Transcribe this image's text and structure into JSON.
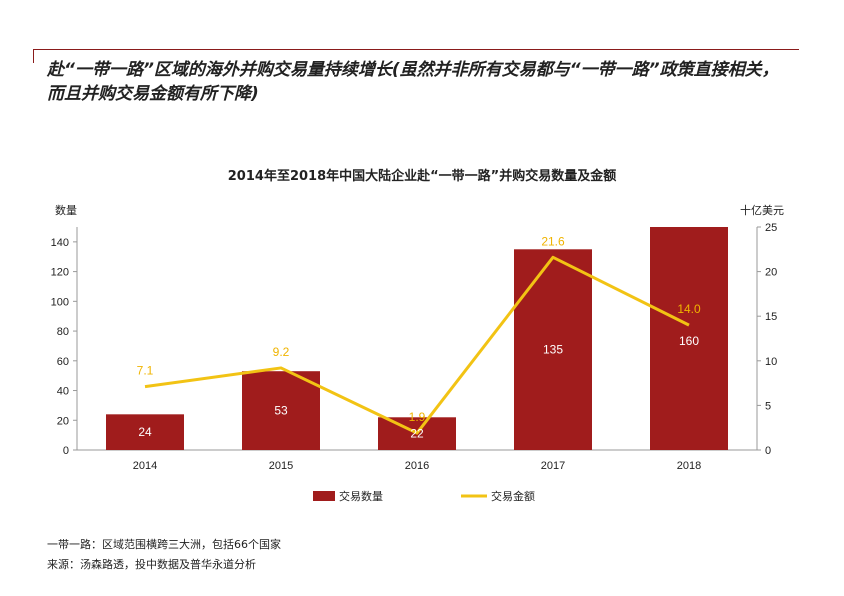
{
  "headline": "赴“一带一路”区域的海外并购交易量持续增长(虽然并非所有交易都与“一带一路”政策直接相关，而且并购交易金额有所下降)",
  "footnotes": {
    "definition": "一带一路：区域范围横跨三大洲，包括66个国家",
    "source": "来源：汤森路透，投中数据及普华永道分析"
  },
  "chart_data": {
    "type": "bar+line",
    "title": "2014年至2018年中国大陆企业赴“一带一路”并购交易数量及金额",
    "categories": [
      "2014",
      "2015",
      "2016",
      "2017",
      "2018"
    ],
    "left_axis": {
      "unit": "数量",
      "ylim": [
        0,
        150
      ],
      "ticks": [
        0,
        20,
        40,
        60,
        80,
        100,
        120,
        140
      ]
    },
    "right_axis": {
      "unit": "十亿美元",
      "ylim": [
        0,
        25
      ],
      "ticks": [
        0,
        5,
        10,
        15,
        20,
        25
      ]
    },
    "series": [
      {
        "name": "交易数量",
        "type": "bar",
        "axis": "left",
        "color": "#a01c1c",
        "values": [
          24,
          53,
          22,
          135,
          160
        ],
        "labels": [
          "24",
          "53",
          "22",
          "135",
          "160"
        ]
      },
      {
        "name": "交易金额",
        "type": "line",
        "axis": "right",
        "color": "#f2c314",
        "values": [
          7.1,
          9.2,
          1.9,
          21.6,
          14.0
        ],
        "labels": [
          "7.1",
          "9.2",
          "1.9",
          "21.6",
          "14.0"
        ]
      }
    ],
    "legend": "bottom",
    "grid": false
  }
}
